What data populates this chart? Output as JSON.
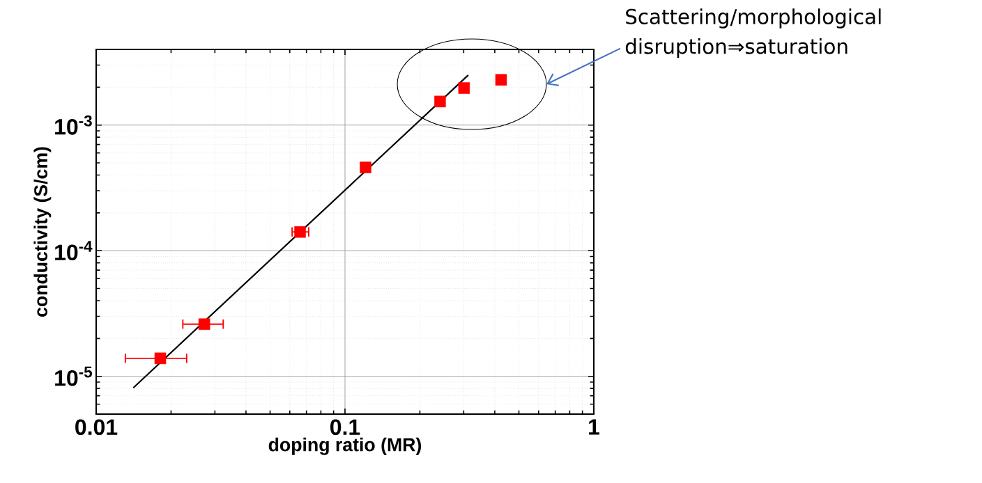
{
  "chart_data": {
    "type": "scatter",
    "xlabel": "doping ratio  (MR)",
    "ylabel": "conductivity (S/cm)",
    "log": "xy",
    "grid": true,
    "xlim": [
      0.01,
      1
    ],
    "ylim": [
      5e-06,
      0.004
    ],
    "xticks": [
      0.01,
      0.1,
      1
    ],
    "yticks": [
      {
        "value": 1e-05,
        "label": "10$^{-5}$"
      },
      {
        "value": 0.0001,
        "label": "10$^{-4}$"
      },
      {
        "value": 0.001,
        "label": "10$^{-3}$"
      }
    ],
    "series": [
      {
        "marker": "square",
        "color": "#ff0000",
        "x": [
          0.0181,
          0.0272,
          0.066,
          0.121,
          0.241,
          0.301,
          0.424
        ],
        "values": [
          1.39e-05,
          2.6e-05,
          0.000141,
          0.00046,
          0.00154,
          0.00197,
          0.00229
        ],
        "xerrors": [
          [
            0.0131,
            0.0231
          ],
          [
            0.0223,
            0.0324
          ],
          [
            0.0613,
            0.0715
          ],
          [
            0.121,
            0.125
          ],
          null,
          null,
          null
        ]
      },
      {
        "type": "line",
        "color": "#000000",
        "x": [
          0.0141,
          0.313
        ],
        "values": [
          8.1e-06,
          0.0025
        ]
      }
    ],
    "annotations": [
      "Scattering/morphological disruption⇒saturation"
    ]
  }
}
